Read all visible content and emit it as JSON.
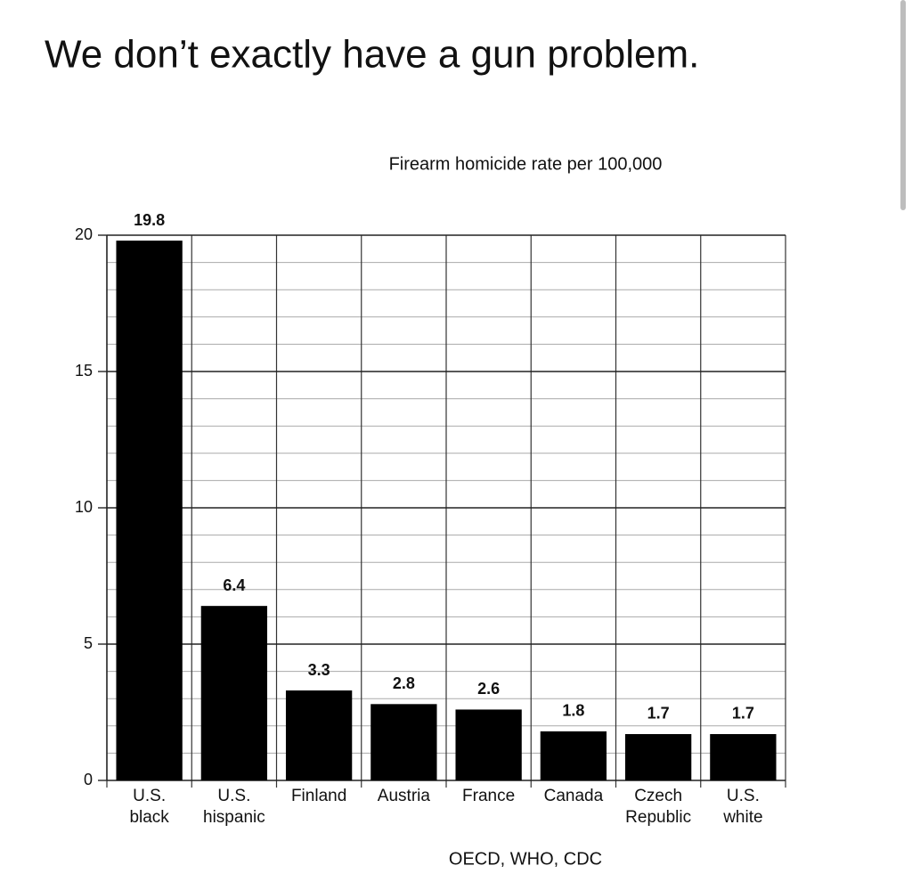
{
  "tweet_text": "We don’t exactly have a gun problem.",
  "chart_data": {
    "type": "bar",
    "title": "Firearm homicide rate per 100,000",
    "source": "OECD, WHO, CDC",
    "categories": [
      "U.S. black",
      "U.S. hispanic",
      "Finland",
      "Austria",
      "France",
      "Canada",
      "Czech Republic",
      "U.S. white"
    ],
    "values": [
      19.8,
      6.4,
      3.3,
      2.8,
      2.6,
      1.8,
      1.7,
      1.7
    ],
    "color": "#000000",
    "ylim": [
      0,
      20
    ],
    "yticks": [
      0,
      5,
      10,
      15,
      20
    ],
    "grid": true
  }
}
